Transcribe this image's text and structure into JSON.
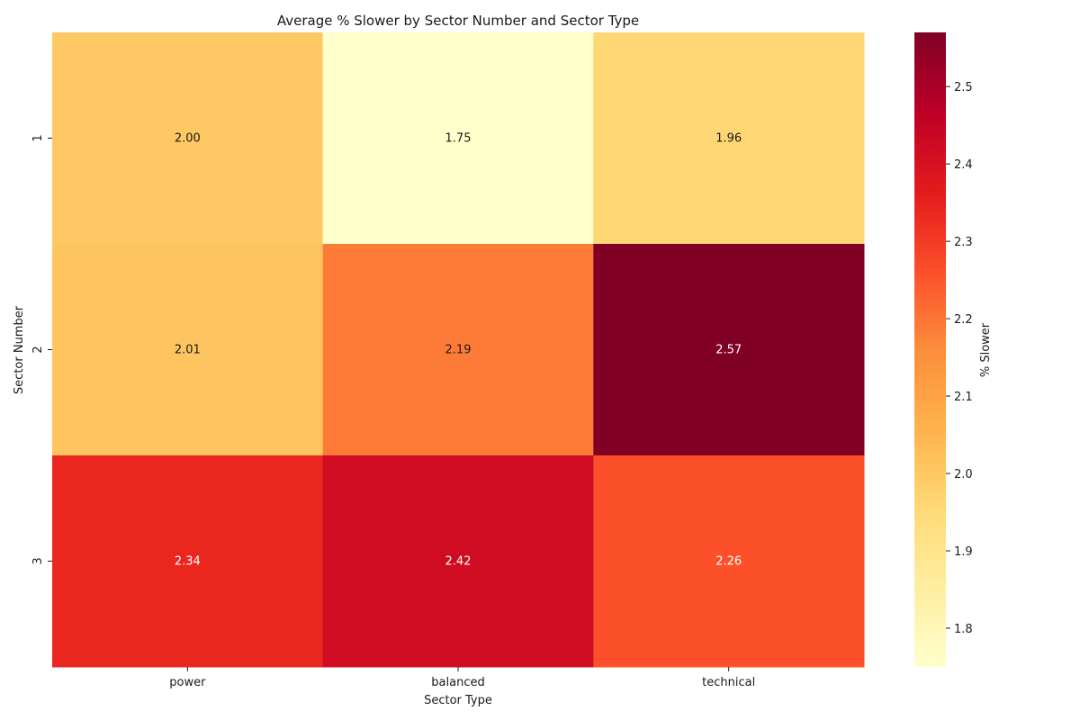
{
  "chart_data": {
    "type": "heatmap",
    "title": "Average % Slower by Sector Number and Sector Type",
    "xlabel": "Sector Type",
    "ylabel": "Sector Number",
    "x_categories": [
      "power",
      "balanced",
      "technical"
    ],
    "y_categories": [
      "1",
      "2",
      "3"
    ],
    "values": [
      [
        2.0,
        1.75,
        1.96
      ],
      [
        2.01,
        2.19,
        2.57
      ],
      [
        2.34,
        2.42,
        2.26
      ]
    ],
    "value_labels": [
      [
        "2.00",
        "1.75",
        "1.96"
      ],
      [
        "2.01",
        "2.19",
        "2.57"
      ],
      [
        "2.34",
        "2.42",
        "2.26"
      ]
    ],
    "colormap": "YlOrRd",
    "colorbar": {
      "label": "% Slower",
      "range": [
        1.75,
        2.57
      ],
      "ticks": [
        "1.8",
        "1.9",
        "2.0",
        "2.1",
        "2.2",
        "2.3",
        "2.4",
        "2.5"
      ]
    }
  }
}
